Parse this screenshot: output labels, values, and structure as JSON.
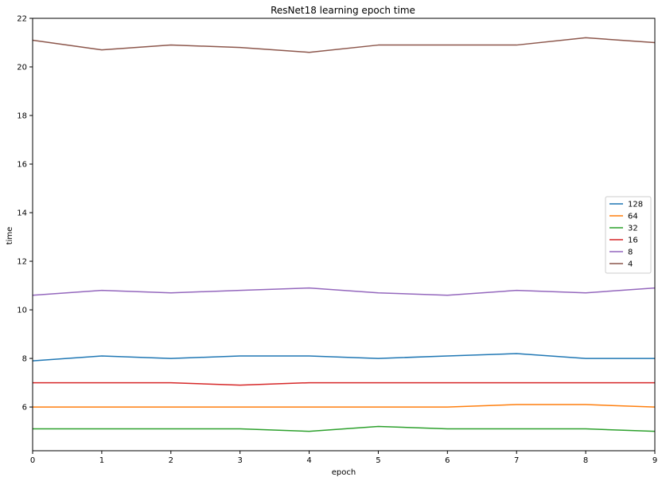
{
  "chart_data": {
    "type": "line",
    "title": "ResNet18 learning epoch time",
    "xlabel": "epoch",
    "ylabel": "time",
    "x": [
      0,
      1,
      2,
      3,
      4,
      5,
      6,
      7,
      8,
      9
    ],
    "xlim": [
      0,
      9
    ],
    "ylim": [
      4.2,
      22
    ],
    "xticks": [
      0,
      1,
      2,
      3,
      4,
      5,
      6,
      7,
      8,
      9
    ],
    "yticks": [
      6,
      8,
      10,
      12,
      14,
      16,
      18,
      20,
      22
    ],
    "grid": false,
    "legend_position": "center-right",
    "series": [
      {
        "name": "128",
        "color": "#1f77b4",
        "values": [
          7.9,
          8.1,
          8.0,
          8.1,
          8.1,
          8.0,
          8.1,
          8.2,
          8.0,
          8.0
        ]
      },
      {
        "name": "64",
        "color": "#ff7f0e",
        "values": [
          6.0,
          6.0,
          6.0,
          6.0,
          6.0,
          6.0,
          6.0,
          6.1,
          6.1,
          6.0
        ]
      },
      {
        "name": "32",
        "color": "#2ca02c",
        "values": [
          5.1,
          5.1,
          5.1,
          5.1,
          5.0,
          5.2,
          5.1,
          5.1,
          5.1,
          5.0
        ]
      },
      {
        "name": "16",
        "color": "#d62728",
        "values": [
          7.0,
          7.0,
          7.0,
          6.9,
          7.0,
          7.0,
          7.0,
          7.0,
          7.0,
          7.0
        ]
      },
      {
        "name": "8",
        "color": "#9467bd",
        "values": [
          10.6,
          10.8,
          10.7,
          10.8,
          10.9,
          10.7,
          10.6,
          10.8,
          10.7,
          10.9
        ]
      },
      {
        "name": "4",
        "color": "#8c564b",
        "values": [
          21.1,
          20.7,
          20.9,
          20.8,
          20.6,
          20.9,
          20.9,
          20.9,
          21.2,
          21.0
        ]
      }
    ]
  }
}
